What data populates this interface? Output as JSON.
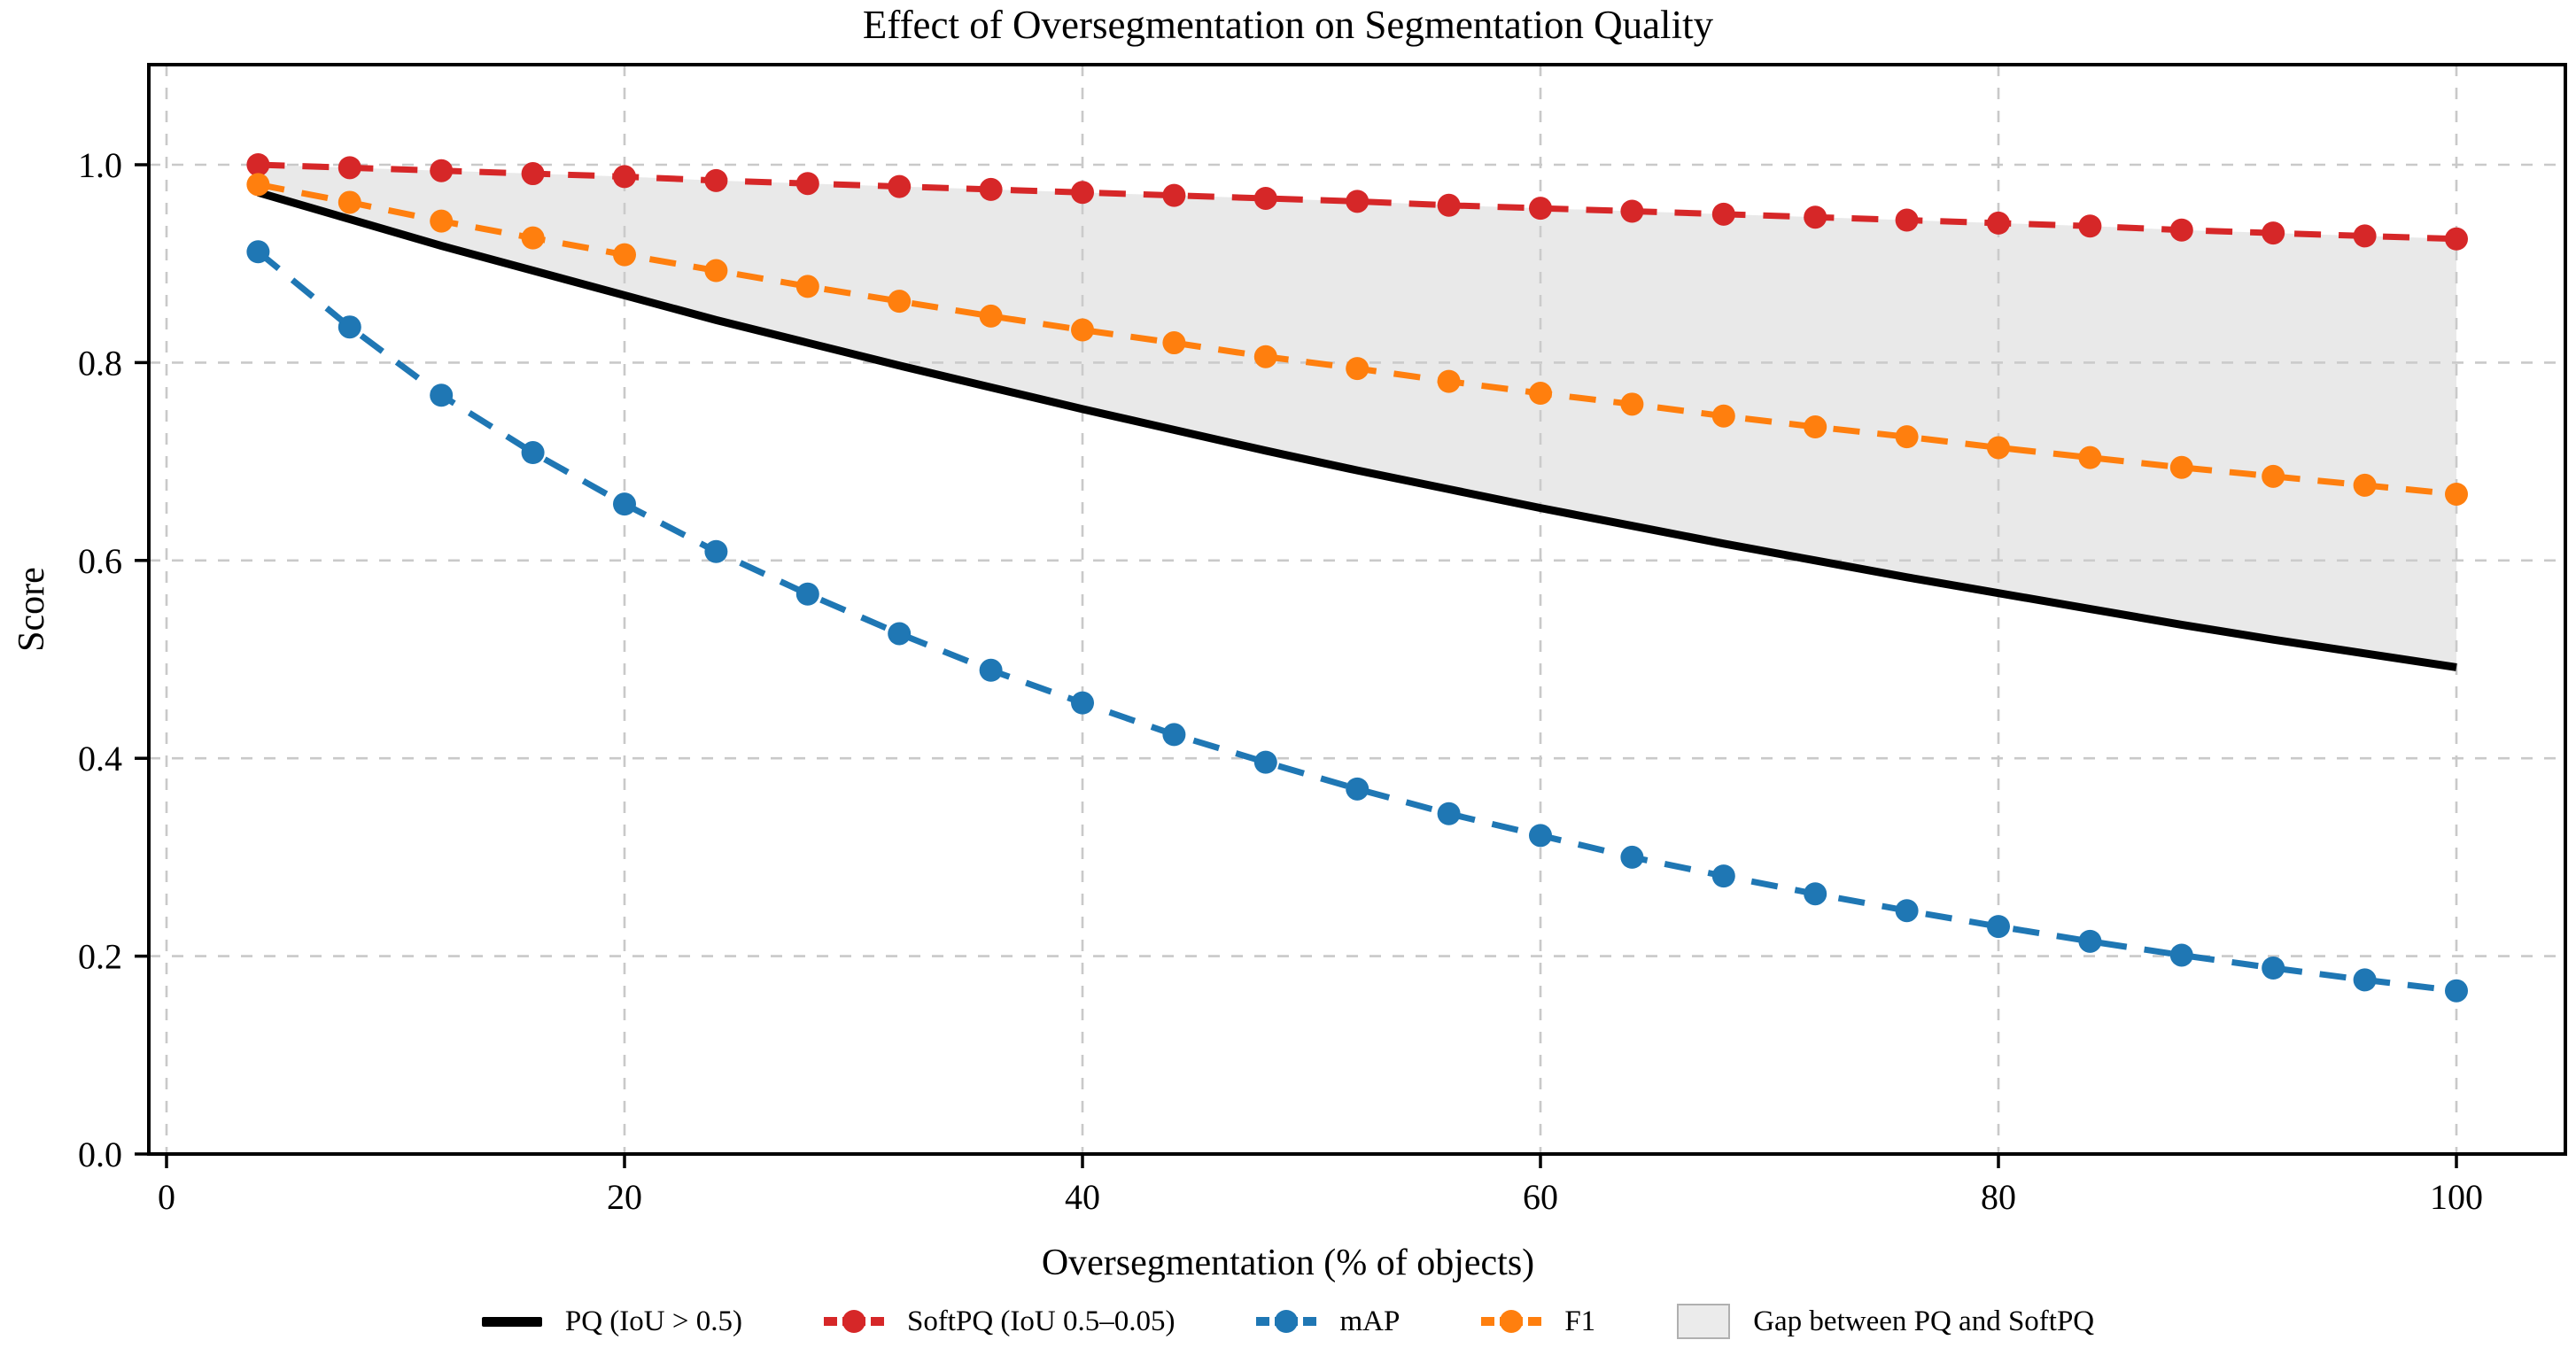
{
  "chart_data": {
    "type": "line",
    "title": "Effect of Oversegmentation on Segmentation Quality",
    "xlabel": "Oversegmentation (% of objects)",
    "ylabel": "Score",
    "xlim": [
      -0.8,
      104.8
    ],
    "ylim": [
      0.0,
      1.101
    ],
    "xticks": [
      0,
      20,
      40,
      60,
      80,
      100
    ],
    "yticks": [
      0.0,
      0.2,
      0.4,
      0.6,
      0.8,
      1.0
    ],
    "grid": true,
    "grid_color": "#c9c9c9",
    "legend_position": "bottom-center",
    "x": [
      4,
      8,
      12,
      16,
      20,
      24,
      28,
      32,
      36,
      40,
      44,
      48,
      52,
      56,
      60,
      64,
      68,
      72,
      76,
      80,
      84,
      88,
      92,
      96,
      100
    ],
    "series": [
      {
        "name": "PQ (IoU > 0.5)",
        "color": "#000000",
        "line_style": "solid",
        "marker": "none",
        "values": [
          0.972,
          0.945,
          0.918,
          0.893,
          0.868,
          0.843,
          0.82,
          0.797,
          0.775,
          0.753,
          0.732,
          0.711,
          0.691,
          0.672,
          0.653,
          0.635,
          0.617,
          0.6,
          0.583,
          0.567,
          0.551,
          0.535,
          0.52,
          0.506,
          0.492
        ]
      },
      {
        "name": "SoftPQ (IoU 0.5–0.05)",
        "color": "#d62728",
        "line_style": "dashed",
        "marker": "circle",
        "values": [
          1.0,
          0.997,
          0.994,
          0.991,
          0.988,
          0.984,
          0.981,
          0.978,
          0.975,
          0.972,
          0.969,
          0.966,
          0.963,
          0.959,
          0.956,
          0.953,
          0.95,
          0.947,
          0.944,
          0.941,
          0.938,
          0.934,
          0.931,
          0.928,
          0.925
        ]
      },
      {
        "name": "mAP",
        "color": "#1f77b4",
        "line_style": "dashed",
        "marker": "circle",
        "values": [
          0.912,
          0.836,
          0.767,
          0.709,
          0.657,
          0.609,
          0.566,
          0.526,
          0.489,
          0.456,
          0.424,
          0.396,
          0.369,
          0.344,
          0.322,
          0.3,
          0.281,
          0.263,
          0.246,
          0.23,
          0.215,
          0.201,
          0.188,
          0.176,
          0.165
        ]
      },
      {
        "name": "F1",
        "color": "#ff7f0e",
        "line_style": "dashed",
        "marker": "circle",
        "values": [
          0.98,
          0.962,
          0.943,
          0.926,
          0.909,
          0.893,
          0.877,
          0.862,
          0.847,
          0.833,
          0.82,
          0.806,
          0.794,
          0.781,
          0.769,
          0.758,
          0.746,
          0.735,
          0.725,
          0.714,
          0.704,
          0.694,
          0.685,
          0.676,
          0.667
        ]
      }
    ],
    "fill_between": {
      "label": "Gap between PQ and SoftPQ",
      "upper_series": "SoftPQ (IoU 0.5–0.05)",
      "lower_series": "PQ (IoU > 0.5)",
      "fill_color": "#cfcfcf",
      "fill_opacity": 0.45
    },
    "legend_items": [
      {
        "label": "PQ (IoU > 0.5)",
        "handle": "line",
        "color": "#000000"
      },
      {
        "label": "SoftPQ (IoU 0.5–0.05)",
        "handle": "line-marker",
        "color": "#d62728"
      },
      {
        "label": "mAP",
        "handle": "line-marker",
        "color": "#1f77b4"
      },
      {
        "label": "F1",
        "handle": "line-marker",
        "color": "#ff7f0e"
      },
      {
        "label": "Gap between PQ and SoftPQ",
        "handle": "patch",
        "color": "#ebebeb",
        "edge_color": "#b0b0b0"
      }
    ]
  }
}
